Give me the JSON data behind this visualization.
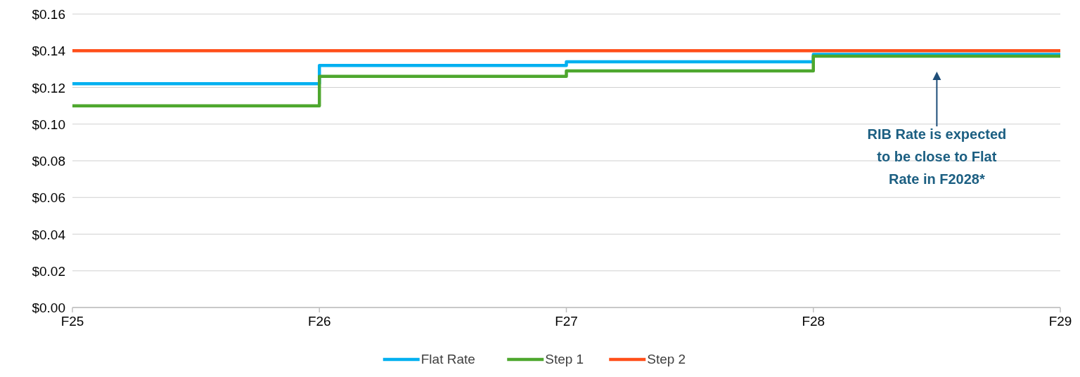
{
  "chart_data": {
    "type": "step",
    "categories": [
      "F25",
      "F26",
      "F27",
      "F28",
      "F29"
    ],
    "series": [
      {
        "name": "Flat Rate",
        "color": "#00b0f0",
        "values": [
          0.122,
          0.132,
          0.134,
          0.138,
          0.138
        ]
      },
      {
        "name": "Step 1",
        "color": "#4ea72e",
        "values": [
          0.11,
          0.126,
          0.129,
          0.137,
          0.137
        ]
      },
      {
        "name": "Step 2",
        "color": "#ff4f1a",
        "values": [
          0.14,
          0.14,
          0.14,
          0.14,
          0.14
        ]
      }
    ],
    "ylim": [
      0,
      0.16
    ],
    "yticks": [
      {
        "value": 0,
        "label": "$0.00"
      },
      {
        "value": 0.02,
        "label": "$0.02"
      },
      {
        "value": 0.04,
        "label": "$0.04"
      },
      {
        "value": 0.06,
        "label": "$0.06"
      },
      {
        "value": 0.08,
        "label": "$0.08"
      },
      {
        "value": 0.1,
        "label": "$0.10"
      },
      {
        "value": 0.12,
        "label": "$0.12"
      },
      {
        "value": 0.14,
        "label": "$0.14"
      },
      {
        "value": 0.16,
        "label": "$0.16"
      }
    ],
    "grid": "y",
    "legend": "bottom",
    "marker": "none",
    "line_style": "solid",
    "annotations": [
      "RIB Rate is expected to be close to Flat Rate in F2028*"
    ]
  }
}
